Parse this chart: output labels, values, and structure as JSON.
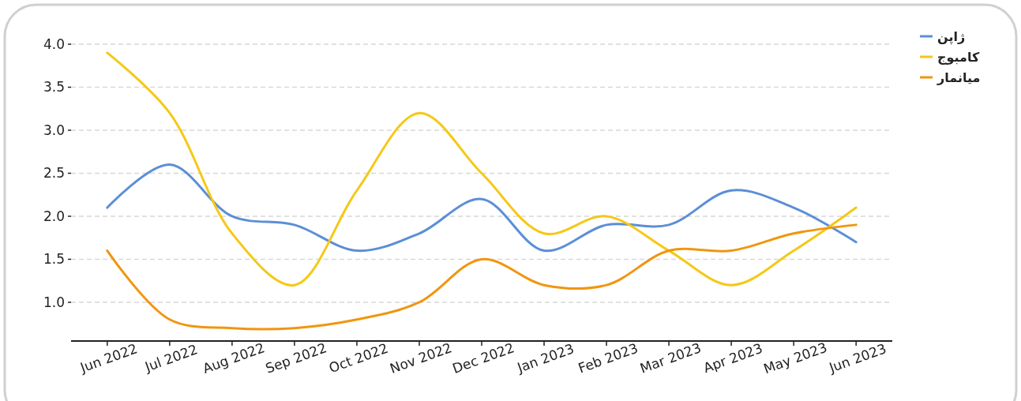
{
  "chart_data": {
    "type": "line",
    "categories": [
      "Jun 2022",
      "Jul 2022",
      "Aug 2022",
      "Sep 2022",
      "Oct 2022",
      "Nov 2022",
      "Dec 2022",
      "Jan 2023",
      "Feb 2023",
      "Mar 2023",
      "Apr 2023",
      "May 2023",
      "Jun 2023"
    ],
    "series": [
      {
        "name": "ژاپن",
        "color": "#5b8fd6",
        "values": [
          2.1,
          2.6,
          2.0,
          1.9,
          1.6,
          1.8,
          2.2,
          1.6,
          1.9,
          1.9,
          2.3,
          2.1,
          1.7
        ]
      },
      {
        "name": "کامبوج",
        "color": "#f5c816",
        "values": [
          3.9,
          3.2,
          1.8,
          1.2,
          2.3,
          3.2,
          2.5,
          1.8,
          2.0,
          1.6,
          1.2,
          1.6,
          2.1
        ]
      },
      {
        "name": "میانمار",
        "color": "#f0960f",
        "values": [
          1.6,
          0.8,
          0.7,
          0.7,
          0.8,
          1.0,
          1.5,
          1.2,
          1.2,
          1.6,
          1.6,
          1.8,
          1.9
        ]
      }
    ],
    "ylim": [
      0.55,
      4.0
    ],
    "yticks": [
      {
        "value": 1,
        "label": "1.0"
      },
      {
        "value": 1.5,
        "label": "1.5"
      },
      {
        "value": 2,
        "label": "2.0"
      },
      {
        "value": 2.5,
        "label": "2.5"
      },
      {
        "value": 3,
        "label": "3.0"
      },
      {
        "value": 3.5,
        "label": "3.5"
      },
      {
        "value": 4,
        "label": "4.0"
      }
    ],
    "grid": "y",
    "legend": "top right",
    "marker": "none",
    "line_style": "solid"
  }
}
